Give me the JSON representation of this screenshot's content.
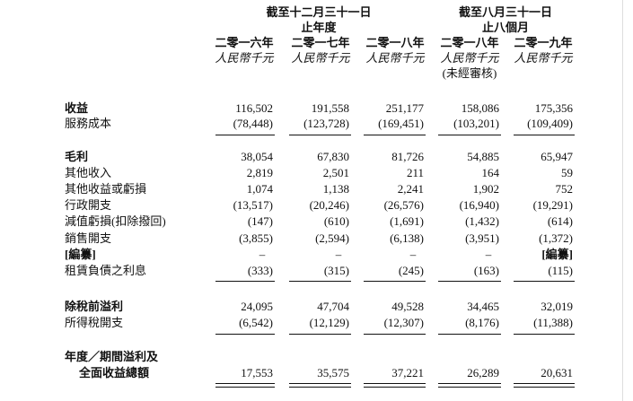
{
  "header": {
    "groups": [
      {
        "lines": [
          "截至十二月三十一日",
          "止年度"
        ]
      },
      {
        "lines": [
          "截至八月三十一日",
          "止八個月"
        ]
      }
    ],
    "columns": [
      {
        "year": "二零一六年",
        "unit": "人民幣千元"
      },
      {
        "year": "二零一七年",
        "unit": "人民幣千元"
      },
      {
        "year": "二零一八年",
        "unit": "人民幣千元"
      },
      {
        "year": "二零一八年",
        "unit": "人民幣千元",
        "note": "(未經審核)"
      },
      {
        "year": "二零一九年",
        "unit": "人民幣千元"
      }
    ]
  },
  "rows": [
    {
      "label": [
        "收益"
      ],
      "values": [
        "116,502",
        "191,558",
        "251,177",
        "158,086",
        "175,356"
      ]
    },
    {
      "label": [
        "服務成本"
      ],
      "values": [
        "(78,448)",
        "(123,728)",
        "(169,451)",
        "(103,201)",
        "(109,409)"
      ]
    },
    {
      "label": [
        "毛利"
      ],
      "values": [
        "38,054",
        "67,830",
        "81,726",
        "54,885",
        "65,947"
      ]
    },
    {
      "label": [
        "其他收入"
      ],
      "values": [
        "2,819",
        "2,501",
        "211",
        "164",
        "59"
      ]
    },
    {
      "label": [
        "其他收益或虧損"
      ],
      "values": [
        "1,074",
        "1,138",
        "2,241",
        "1,902",
        "752"
      ]
    },
    {
      "label": [
        "行政開支"
      ],
      "values": [
        "(13,517)",
        "(20,246)",
        "(26,576)",
        "(16,940)",
        "(19,291)"
      ]
    },
    {
      "label": [
        "減值虧損(扣除撥回)"
      ],
      "values": [
        "(147)",
        "(610)",
        "(1,691)",
        "(1,432)",
        "(614)"
      ]
    },
    {
      "label": [
        "銷售開支"
      ],
      "values": [
        "(3,855)",
        "(2,594)",
        "(6,138)",
        "(3,951)",
        "(1,372)"
      ]
    },
    {
      "label": [
        "[編纂]"
      ],
      "values": [
        "–",
        "–",
        "–",
        "–",
        "[編纂]"
      ]
    },
    {
      "label": [
        "租賃負債之利息"
      ],
      "values": [
        "(333)",
        "(315)",
        "(245)",
        "(163)",
        "(115)"
      ]
    },
    {
      "label": [
        "除稅前溢利"
      ],
      "values": [
        "24,095",
        "47,704",
        "49,528",
        "34,465",
        "32,019"
      ]
    },
    {
      "label": [
        "所得稅開支"
      ],
      "values": [
        "(6,542)",
        "(12,129)",
        "(12,307)",
        "(8,176)",
        "(11,388)"
      ]
    },
    {
      "label": [
        "年度／期間溢利及",
        "全面收益總額"
      ],
      "values": [
        "17,553",
        "35,575",
        "37,221",
        "26,289",
        "20,631"
      ]
    }
  ]
}
